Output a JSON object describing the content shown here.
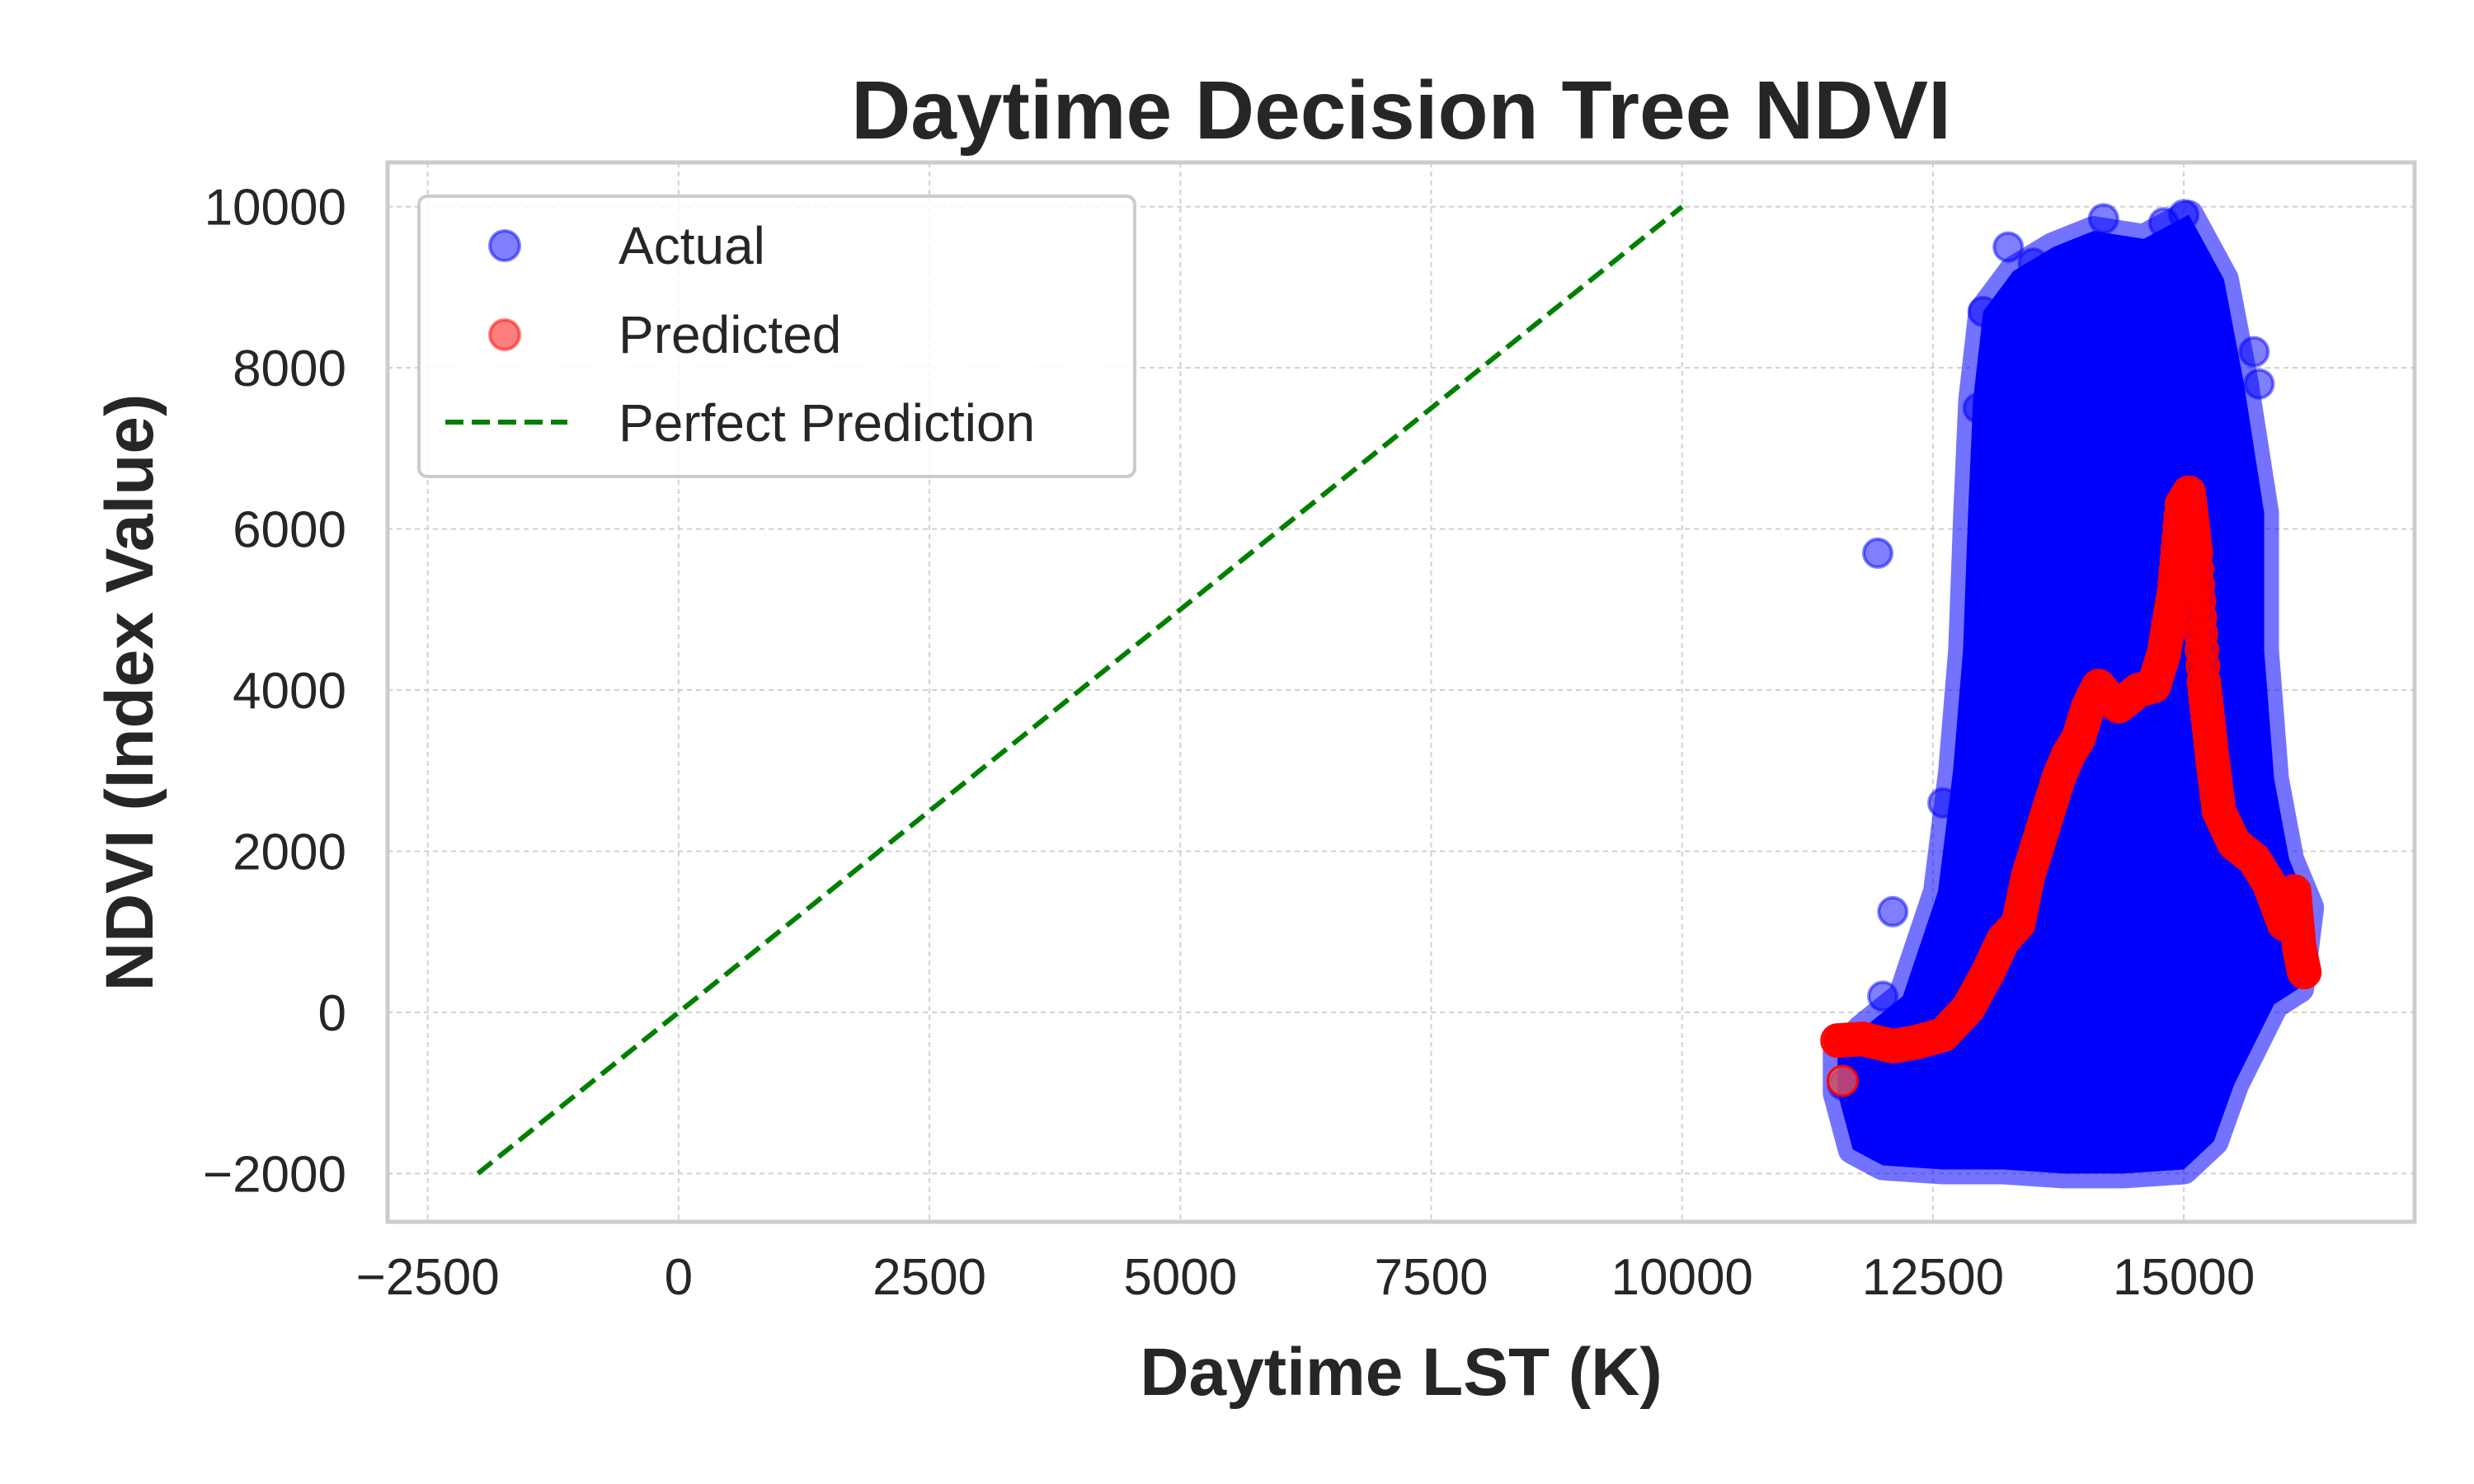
{
  "chart_data": {
    "type": "scatter",
    "title": "Daytime Decision Tree NDVI",
    "xlabel": "Daytime LST (K)",
    "ylabel": "NDVI (Index Value)",
    "xlim": [
      -2900,
      17300
    ],
    "ylim": [
      -2600,
      10550
    ],
    "xticks": [
      -2500,
      0,
      2500,
      5000,
      7500,
      10000,
      12500,
      15000
    ],
    "xtick_labels": [
      "−2500",
      "0",
      "2500",
      "5000",
      "7500",
      "10000",
      "12500",
      "15000"
    ],
    "yticks": [
      -2000,
      0,
      2000,
      4000,
      6000,
      8000,
      10000
    ],
    "ytick_labels": [
      "−2000",
      "0",
      "2000",
      "4000",
      "6000",
      "8000",
      "10000"
    ],
    "grid": true,
    "legend_position": "top-left",
    "series": [
      {
        "name": "Actual",
        "kind": "scatter",
        "color": "#0000ff",
        "alpha": 0.5,
        "cloud_outline": [
          [
            11550,
            -1000
          ],
          [
            11700,
            -1700
          ],
          [
            12000,
            -1900
          ],
          [
            12600,
            -1950
          ],
          [
            13200,
            -1950
          ],
          [
            13800,
            -2000
          ],
          [
            14400,
            -2000
          ],
          [
            15000,
            -1950
          ],
          [
            15300,
            -1600
          ],
          [
            15500,
            -900
          ],
          [
            15700,
            -400
          ],
          [
            15900,
            100
          ],
          [
            16150,
            300
          ],
          [
            16250,
            1300
          ],
          [
            16050,
            1900
          ],
          [
            15900,
            2900
          ],
          [
            15800,
            4500
          ],
          [
            15800,
            6200
          ],
          [
            15600,
            7800
          ],
          [
            15400,
            9100
          ],
          [
            15050,
            9900
          ],
          [
            14600,
            9600
          ],
          [
            14100,
            9700
          ],
          [
            13700,
            9500
          ],
          [
            13300,
            9200
          ],
          [
            13000,
            8700
          ],
          [
            12900,
            7600
          ],
          [
            12850,
            6200
          ],
          [
            12800,
            4500
          ],
          [
            12700,
            3000
          ],
          [
            12550,
            1500
          ],
          [
            12200,
            200
          ],
          [
            11800,
            -200
          ],
          [
            11550,
            -500
          ]
        ],
        "points": [
          [
            11950,
            5700
          ],
          [
            12100,
            1250
          ],
          [
            13250,
            9500
          ],
          [
            14200,
            9850
          ],
          [
            14800,
            9800
          ],
          [
            15000,
            9900
          ],
          [
            13000,
            8700
          ],
          [
            12950,
            7500
          ],
          [
            15750,
            7800
          ],
          [
            15700,
            8200
          ],
          [
            13500,
            9300
          ],
          [
            12600,
            2600
          ],
          [
            12000,
            200
          ],
          [
            11600,
            -900
          ],
          [
            15600,
            6300
          ]
        ]
      },
      {
        "name": "Predicted",
        "kind": "scatter",
        "color": "#ff0000",
        "alpha": 0.5,
        "points": [
          [
            11550,
            -350
          ],
          [
            11800,
            -330
          ],
          [
            12100,
            -420
          ],
          [
            12300,
            -380
          ],
          [
            12600,
            -280
          ],
          [
            12850,
            50
          ],
          [
            13050,
            500
          ],
          [
            13200,
            900
          ],
          [
            13350,
            1100
          ],
          [
            13450,
            1700
          ],
          [
            13600,
            2300
          ],
          [
            13750,
            2900
          ],
          [
            13850,
            3200
          ],
          [
            13950,
            3400
          ],
          [
            14050,
            3800
          ],
          [
            14150,
            4050
          ],
          [
            14250,
            3900
          ],
          [
            14350,
            3800
          ],
          [
            14450,
            3900
          ],
          [
            14550,
            4000
          ],
          [
            14700,
            4050
          ],
          [
            14800,
            4450
          ],
          [
            14900,
            5200
          ],
          [
            14980,
            6300
          ],
          [
            15050,
            6450
          ],
          [
            15120,
            5700
          ],
          [
            15200,
            4100
          ],
          [
            15280,
            3200
          ],
          [
            15350,
            2500
          ],
          [
            15500,
            2100
          ],
          [
            15700,
            1900
          ],
          [
            15850,
            1600
          ],
          [
            16000,
            1100
          ],
          [
            16100,
            1500
          ],
          [
            16150,
            800
          ],
          [
            16200,
            500
          ],
          [
            11600,
            -850
          ]
        ]
      },
      {
        "name": "Perfect Prediction",
        "kind": "line",
        "style": "dashed",
        "color": "#008000",
        "points": [
          [
            -2000,
            -2000
          ],
          [
            10000,
            10000
          ]
        ]
      }
    ]
  }
}
